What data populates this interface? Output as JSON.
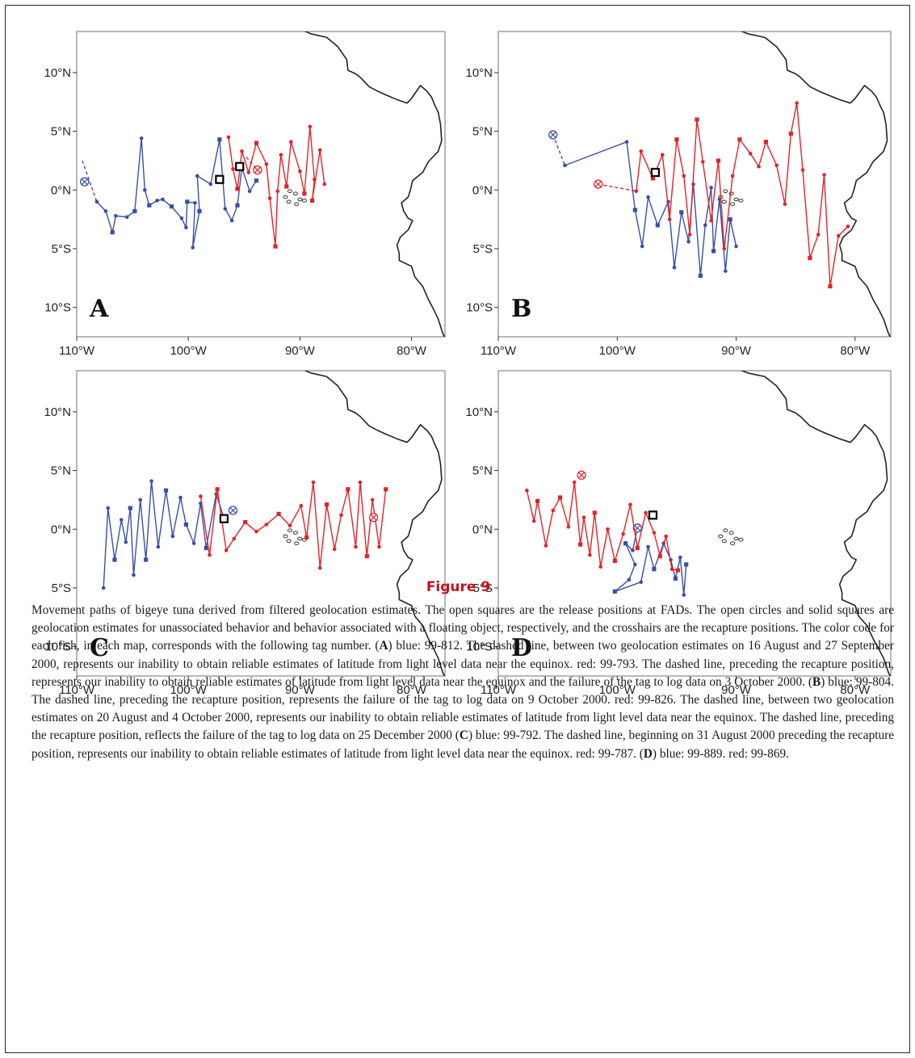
{
  "figure": {
    "title": "Figure 9",
    "caption_html": "Movement paths of bigeye tuna derived from filtered geolocation estimates. The open squares are the release positions at FADs. The open circles and solid squares are geolocation estimates for unassociated behavior and behavior associated with a floating object, respectively, and the crosshairs are the recapture positions. The color code for each fish, in each map, corresponds with the following tag number. (<b>A</b>) blue: 99-812. The dashed line, between two geolocation estimates on 16 August and 27 September 2000, represents our inability to obtain reliable estimates of latitude from light level data near the equinox. red: 99-793. The dashed line, preceding the recapture position, represents our inability to obtain reliable estimates of latitude from light level data near the equinox and the failure of the tag to log data on 3 October 2000. (<b>B</b>) blue: 99-804. The dashed line, preceding the recapture position, represents the failure of the tag to log data on 9 October 2000. red: 99-826. The dashed line, between two geolocation estimates on 20 August and 4 October 2000, represents our inability to obtain reliable estimates of latitude from light level data near the equinox. The dashed line, preceding the recapture position, reflects the failure of the tag to log data on 25 December 2000 (<b>C</b>) blue: 99-792. The dashed line, beginning on 31 August 2000 preceding the recapture position, represents our inability to obtain reliable estimates of latitude from light level data near the equinox. red: 99-787. (<b>D</b>) blue: 99-889. red: 99-869."
  },
  "colors": {
    "blue": "#3a4fa6",
    "red": "#e0242a",
    "coast": "#222222"
  },
  "chart_data": [
    {
      "type": "scatter",
      "panel": "A",
      "xlim": [
        -110,
        -77
      ],
      "ylim": [
        -12.5,
        13.5
      ],
      "xticks": [
        -110,
        -100,
        -90,
        -80
      ],
      "yticks": [
        10,
        5,
        0,
        -5,
        -10
      ],
      "xtick_labels": [
        "110°W",
        "100°W",
        "90°W",
        "80°W"
      ],
      "ytick_labels": [
        "10°N",
        "5°N",
        "0°N",
        "5°S",
        "10°S"
      ],
      "release": [
        [
          -97.2,
          0.9
        ],
        [
          -95.4,
          2.0
        ]
      ],
      "series": [
        {
          "color": "blue",
          "recapture": [
            -109.3,
            0.7
          ],
          "dashed": [
            [
              -109.5,
              2.5
            ],
            [
              -108.2,
              -1.0
            ]
          ],
          "path": [
            [
              -108.2,
              -1.0
            ],
            [
              -107.4,
              -1.8
            ],
            [
              -106.8,
              -3.6
            ],
            [
              -106.5,
              -2.2
            ],
            [
              -105.5,
              -2.3
            ],
            [
              -104.8,
              -1.8
            ],
            [
              -104.2,
              4.4
            ],
            [
              -103.9,
              0.0
            ],
            [
              -103.5,
              -1.3
            ],
            [
              -102.8,
              -0.9
            ],
            [
              -102.3,
              -0.8
            ],
            [
              -101.5,
              -1.4
            ],
            [
              -100.6,
              -2.4
            ],
            [
              -100.2,
              -3.2
            ],
            [
              -100.1,
              -1.0
            ],
            [
              -99.4,
              -1.1
            ],
            [
              -99.6,
              -4.9
            ],
            [
              -99.0,
              -1.8
            ],
            [
              -99.2,
              1.2
            ],
            [
              -98.0,
              0.5
            ],
            [
              -97.2,
              4.3
            ],
            [
              -96.7,
              -1.6
            ],
            [
              -96.1,
              -2.6
            ],
            [
              -95.6,
              -1.3
            ],
            [
              -95.2,
              1.9
            ],
            [
              -94.5,
              -0.1
            ],
            [
              -93.9,
              0.8
            ]
          ]
        },
        {
          "color": "red",
          "recapture": [
            -93.8,
            1.7
          ],
          "dashed": [
            [
              -94.8,
              2.8
            ],
            [
              -93.8,
              1.7
            ]
          ],
          "path": [
            [
              -96.4,
              4.5
            ],
            [
              -96.0,
              1.8
            ],
            [
              -95.6,
              0.1
            ],
            [
              -95.2,
              3.3
            ],
            [
              -94.6,
              1.5
            ],
            [
              -93.9,
              4.0
            ],
            [
              -93.0,
              2.2
            ],
            [
              -92.7,
              -0.7
            ],
            [
              -92.2,
              -4.8
            ],
            [
              -92.0,
              -0.1
            ],
            [
              -91.7,
              3.0
            ],
            [
              -91.2,
              0.3
            ],
            [
              -90.8,
              4.1
            ],
            [
              -90.0,
              1.6
            ],
            [
              -89.6,
              -0.3
            ],
            [
              -89.1,
              5.4
            ],
            [
              -88.7,
              0.9
            ],
            [
              -88.9,
              -0.9
            ],
            [
              -88.2,
              3.4
            ],
            [
              -87.8,
              0.5
            ]
          ]
        }
      ]
    },
    {
      "type": "scatter",
      "panel": "B",
      "xlim": [
        -110,
        -77
      ],
      "ylim": [
        -12.5,
        13.5
      ],
      "xticks": [
        -110,
        -100,
        -90,
        -80
      ],
      "yticks": [
        10,
        5,
        0,
        -5,
        -10
      ],
      "xtick_labels": [
        "110°W",
        "100°W",
        "90°W",
        "80°W"
      ],
      "ytick_labels": [
        "10°N",
        "5°N",
        "0°N",
        "5°S",
        "10°S"
      ],
      "release": [
        [
          -96.8,
          1.5
        ]
      ],
      "series": [
        {
          "color": "blue",
          "recapture": [
            -105.4,
            4.7
          ],
          "dashed": [
            [
              -105.4,
              4.7
            ],
            [
              -104.4,
              2.1
            ]
          ],
          "path": [
            [
              -104.4,
              2.1
            ],
            [
              -99.2,
              4.1
            ],
            [
              -98.5,
              -1.7
            ],
            [
              -97.9,
              -4.8
            ],
            [
              -97.4,
              -0.6
            ],
            [
              -96.6,
              -3.0
            ],
            [
              -95.7,
              -1.0
            ],
            [
              -95.2,
              -6.6
            ],
            [
              -94.6,
              -1.9
            ],
            [
              -94.0,
              -4.4
            ],
            [
              -93.6,
              0.5
            ],
            [
              -93.0,
              -7.3
            ],
            [
              -92.6,
              -3.0
            ],
            [
              -92.1,
              0.2
            ],
            [
              -91.9,
              -5.2
            ],
            [
              -91.4,
              -0.8
            ],
            [
              -90.9,
              -6.9
            ],
            [
              -90.5,
              -2.5
            ],
            [
              -90.0,
              -4.8
            ]
          ]
        },
        {
          "color": "red",
          "recapture": [
            -101.6,
            0.5
          ],
          "dashed": [
            [
              -101.6,
              0.5
            ],
            [
              -98.4,
              -0.1
            ]
          ],
          "path": [
            [
              -98.4,
              -0.1
            ],
            [
              -98.0,
              3.3
            ],
            [
              -97.0,
              1.0
            ],
            [
              -96.2,
              3.0
            ],
            [
              -95.6,
              -2.5
            ],
            [
              -95.0,
              4.3
            ],
            [
              -94.4,
              1.2
            ],
            [
              -93.9,
              -3.8
            ],
            [
              -93.3,
              6.0
            ],
            [
              -92.8,
              2.4
            ],
            [
              -92.1,
              -2.6
            ],
            [
              -91.5,
              2.5
            ],
            [
              -91.0,
              -5.0
            ],
            [
              -90.3,
              1.2
            ],
            [
              -89.7,
              4.3
            ],
            [
              -88.8,
              3.1
            ],
            [
              -88.1,
              2.0
            ],
            [
              -87.5,
              4.1
            ],
            [
              -86.6,
              2.1
            ],
            [
              -85.9,
              -1.2
            ],
            [
              -85.4,
              4.8
            ],
            [
              -84.9,
              7.4
            ],
            [
              -84.4,
              1.7
            ],
            [
              -83.8,
              -5.8
            ],
            [
              -83.1,
              -3.8
            ],
            [
              -82.6,
              1.3
            ],
            [
              -82.1,
              -8.2
            ],
            [
              -81.4,
              -3.9
            ],
            [
              -80.6,
              -3.1
            ]
          ]
        }
      ]
    },
    {
      "type": "scatter",
      "panel": "C",
      "xlim": [
        -110,
        -77
      ],
      "ylim": [
        -12.5,
        13.5
      ],
      "xticks": [
        -110,
        -100,
        -90,
        -80
      ],
      "yticks": [
        10,
        5,
        0,
        -5,
        -10
      ],
      "xtick_labels": [
        "110°W",
        "100°W",
        "90°W",
        "80°W"
      ],
      "ytick_labels": [
        "10°N",
        "5°N",
        "0°N",
        "5°S",
        "10°S"
      ],
      "release": [
        [
          -96.8,
          0.9
        ]
      ],
      "series": [
        {
          "color": "blue",
          "recapture": [
            -96.0,
            1.6
          ],
          "dashed": [],
          "path": [
            [
              -96.8,
              0.9
            ],
            [
              -97.5,
              3.0
            ],
            [
              -98.4,
              -1.6
            ],
            [
              -98.9,
              2.2
            ],
            [
              -99.5,
              -1.2
            ],
            [
              -100.2,
              0.4
            ],
            [
              -100.7,
              2.7
            ],
            [
              -101.4,
              -0.6
            ],
            [
              -102.0,
              3.3
            ],
            [
              -102.7,
              -1.5
            ],
            [
              -103.3,
              4.1
            ],
            [
              -103.8,
              -2.6
            ],
            [
              -104.3,
              2.5
            ],
            [
              -104.9,
              -3.9
            ],
            [
              -105.2,
              1.8
            ],
            [
              -105.6,
              -1.1
            ],
            [
              -106.0,
              0.8
            ],
            [
              -106.6,
              -2.6
            ],
            [
              -107.2,
              1.8
            ],
            [
              -107.6,
              -5.0
            ]
          ]
        },
        {
          "color": "red",
          "recapture": [
            -83.4,
            1.0
          ],
          "dashed": [],
          "path": [
            [
              -98.9,
              2.8
            ],
            [
              -98.1,
              -2.2
            ],
            [
              -97.4,
              3.4
            ],
            [
              -96.6,
              -1.8
            ],
            [
              -95.9,
              -0.8
            ],
            [
              -94.9,
              0.6
            ],
            [
              -93.9,
              -0.2
            ],
            [
              -93.0,
              0.4
            ],
            [
              -91.9,
              1.3
            ],
            [
              -90.9,
              0.3
            ],
            [
              -89.9,
              2.0
            ],
            [
              -89.4,
              -0.7
            ],
            [
              -88.8,
              4.0
            ],
            [
              -88.2,
              -3.3
            ],
            [
              -87.6,
              2.1
            ],
            [
              -86.9,
              -1.7
            ],
            [
              -86.3,
              1.2
            ],
            [
              -85.7,
              3.4
            ],
            [
              -85.0,
              -1.5
            ],
            [
              -84.6,
              4.0
            ],
            [
              -84.0,
              -2.3
            ],
            [
              -83.5,
              2.5
            ],
            [
              -82.9,
              -1.5
            ],
            [
              -82.3,
              3.4
            ]
          ]
        }
      ]
    },
    {
      "type": "scatter",
      "panel": "D",
      "xlim": [
        -110,
        -77
      ],
      "ylim": [
        -12.5,
        13.5
      ],
      "xticks": [
        -110,
        -100,
        -90,
        -80
      ],
      "yticks": [
        10,
        5,
        0,
        -5,
        -10
      ],
      "xtick_labels": [
        "110°W",
        "100°W",
        "90°W",
        "80°W"
      ],
      "ytick_labels": [
        "10°N",
        "5°N",
        "0°N",
        "5°S",
        "10°S"
      ],
      "release": [
        [
          -97.0,
          1.2
        ]
      ],
      "series": [
        {
          "color": "blue",
          "recapture": [
            -98.3,
            0.1
          ],
          "dashed": [],
          "path": [
            [
              -98.3,
              0.1
            ],
            [
              -98.7,
              -1.8
            ],
            [
              -99.3,
              -1.2
            ],
            [
              -98.5,
              -3.0
            ],
            [
              -99.0,
              -4.3
            ],
            [
              -100.2,
              -5.3
            ],
            [
              -98.0,
              -4.5
            ],
            [
              -97.4,
              -1.5
            ],
            [
              -96.9,
              -3.4
            ],
            [
              -96.1,
              -1.2
            ],
            [
              -95.5,
              -2.6
            ],
            [
              -95.1,
              -4.2
            ],
            [
              -94.7,
              -2.4
            ],
            [
              -94.4,
              -5.6
            ],
            [
              -94.2,
              -3.0
            ]
          ]
        },
        {
          "color": "red",
          "recapture": [
            -103.0,
            4.6
          ],
          "dashed": [],
          "path": [
            [
              -107.6,
              3.3
            ],
            [
              -107.0,
              0.7
            ],
            [
              -106.7,
              2.4
            ],
            [
              -106.0,
              -1.4
            ],
            [
              -105.4,
              1.6
            ],
            [
              -104.8,
              2.7
            ],
            [
              -104.1,
              0.2
            ],
            [
              -103.6,
              4.0
            ],
            [
              -103.1,
              -1.3
            ],
            [
              -102.8,
              1.0
            ],
            [
              -102.3,
              -2.2
            ],
            [
              -101.9,
              1.4
            ],
            [
              -101.4,
              -3.2
            ],
            [
              -100.8,
              0.0
            ],
            [
              -100.2,
              -2.7
            ],
            [
              -99.5,
              -0.4
            ],
            [
              -98.9,
              2.1
            ],
            [
              -98.3,
              -1.6
            ],
            [
              -97.6,
              1.4
            ],
            [
              -96.9,
              -0.3
            ],
            [
              -96.4,
              -2.3
            ],
            [
              -95.9,
              -0.6
            ],
            [
              -95.4,
              -3.4
            ],
            [
              -94.9,
              -3.5
            ]
          ]
        }
      ]
    }
  ]
}
